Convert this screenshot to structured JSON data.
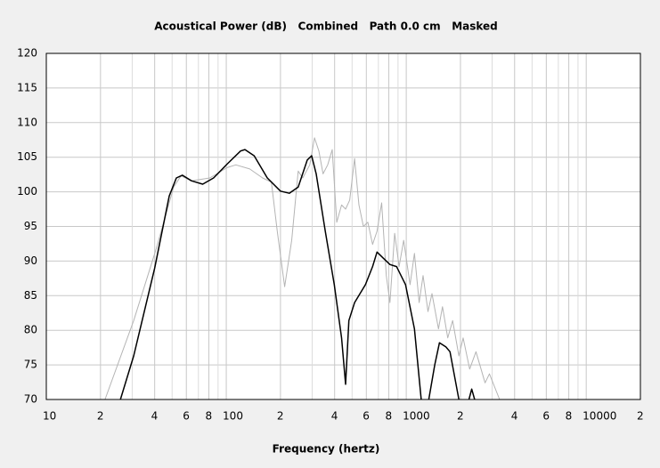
{
  "chart_data": {
    "type": "line",
    "title": "Acoustical Power (dB)   Combined   Path 0.0 cm   Masked",
    "x_label": "Frequency (hertz)",
    "x_scale": "log",
    "grid": true,
    "xlim": [
      10,
      20000
    ],
    "ylim": [
      70,
      120
    ],
    "yticks": [
      70,
      75,
      80,
      85,
      90,
      95,
      100,
      105,
      110,
      115,
      120
    ],
    "xticks": [
      10,
      {
        "value": 20,
        "label": "2"
      },
      {
        "value": 40,
        "label": "4"
      },
      {
        "value": 60,
        "label": "6"
      },
      {
        "value": 80,
        "label": "8"
      },
      100,
      {
        "value": 200,
        "label": "2"
      },
      {
        "value": 400,
        "label": "4"
      },
      {
        "value": 600,
        "label": "6"
      },
      {
        "value": 800,
        "label": "8"
      },
      1000,
      {
        "value": 2000,
        "label": "2"
      },
      {
        "value": 4000,
        "label": "4"
      },
      {
        "value": 6000,
        "label": "6"
      },
      {
        "value": 8000,
        "label": "8"
      },
      10000,
      {
        "value": 20000,
        "label": "2"
      }
    ],
    "x_minor_grid": [
      30,
      50,
      70,
      90,
      300,
      500,
      700,
      900,
      3000,
      5000,
      7000,
      9000
    ],
    "series": [
      {
        "color": "#b4b4b4",
        "x": [
          21.2,
          30.6,
          40.7,
          51,
          56,
          64,
          81,
          101,
          113,
          135,
          159,
          178,
          192,
          211,
          231,
          251,
          266,
          291,
          309,
          327,
          345,
          366,
          388,
          411,
          437,
          460,
          485,
          516,
          546,
          578,
          612,
          650,
          688,
          730,
          775,
          812,
          862,
          913,
          967,
          1050,
          1110,
          1180,
          1240,
          1320,
          1390,
          1510,
          1590,
          1700,
          1810,
          1960,
          2070,
          2250,
          2440,
          2740,
          2900,
          3300
        ],
        "values": [
          70,
          81.4,
          91.7,
          100.7,
          102.3,
          101.6,
          102,
          103.5,
          103.9,
          103.3,
          102,
          101.4,
          94.3,
          86.3,
          93,
          103,
          102,
          103.9,
          107.8,
          105.9,
          102.6,
          103.9,
          106.1,
          95.6,
          98.1,
          97.5,
          98.8,
          104.8,
          98.1,
          95,
          95.6,
          92.4,
          94.3,
          98.4,
          87.9,
          84,
          94,
          89.2,
          93,
          86.6,
          91.1,
          84,
          87.9,
          82.7,
          85.3,
          80.2,
          83.4,
          78.9,
          81.4,
          76.3,
          78.9,
          74.4,
          76.9,
          72.4,
          73.7,
          70
        ]
      },
      {
        "color": "#000000",
        "x": [
          25.8,
          30.6,
          40,
          48.2,
          52.8,
          57,
          64,
          74,
          85,
          101,
          120,
          127,
          143,
          169,
          200,
          224,
          251,
          282,
          298,
          316,
          355,
          398,
          437,
          460,
          480,
          516,
          593,
          650,
          688,
          747,
          812,
          883,
          991,
          1110,
          1211,
          1280,
          1334,
          1440,
          1530,
          1660,
          1750,
          1960,
          2150,
          2230,
          2310,
          2400
        ],
        "values": [
          70,
          76.3,
          89,
          99.4,
          102,
          102.4,
          101.6,
          101.1,
          102,
          104,
          105.9,
          106.1,
          105.2,
          102,
          100.1,
          99.8,
          100.7,
          104.6,
          105.2,
          102.6,
          94.3,
          86.6,
          78.9,
          72.2,
          81.4,
          84,
          86.6,
          89.2,
          91.3,
          90.4,
          89.5,
          89.2,
          86.6,
          80.2,
          70,
          null,
          70,
          75,
          78.2,
          77.6,
          76.9,
          70,
          null,
          70,
          71.5,
          70
        ]
      }
    ]
  }
}
